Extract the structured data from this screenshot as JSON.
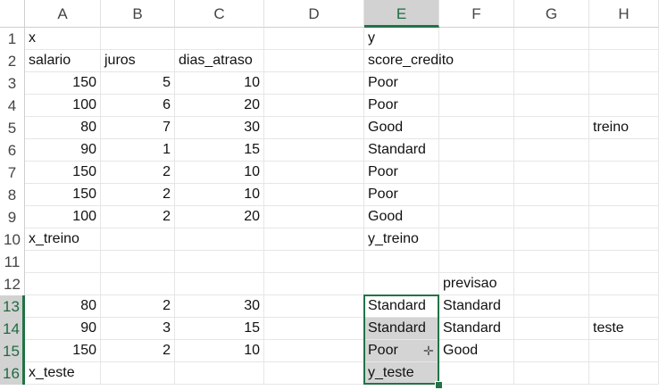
{
  "columns": [
    "A",
    "B",
    "C",
    "D",
    "E",
    "F",
    "G",
    "H"
  ],
  "selected_column": "E",
  "rows": [
    {
      "n": "1",
      "cells": {
        "A": "x",
        "E": "y"
      }
    },
    {
      "n": "2",
      "cells": {
        "A": "salario",
        "B": "juros",
        "C": "dias_atraso",
        "E": "score_credito"
      }
    },
    {
      "n": "3",
      "cells": {
        "A": "150",
        "B": "5",
        "C": "10",
        "E": "Poor"
      }
    },
    {
      "n": "4",
      "cells": {
        "A": "100",
        "B": "6",
        "C": "20",
        "E": "Poor"
      }
    },
    {
      "n": "5",
      "cells": {
        "A": "80",
        "B": "7",
        "C": "30",
        "E": "Good",
        "H": "treino"
      }
    },
    {
      "n": "6",
      "cells": {
        "A": "90",
        "B": "1",
        "C": "15",
        "E": "Standard"
      }
    },
    {
      "n": "7",
      "cells": {
        "A": "150",
        "B": "2",
        "C": "10",
        "E": "Poor"
      }
    },
    {
      "n": "8",
      "cells": {
        "A": "150",
        "B": "2",
        "C": "10",
        "E": "Poor"
      }
    },
    {
      "n": "9",
      "cells": {
        "A": "100",
        "B": "2",
        "C": "20",
        "E": "Good"
      }
    },
    {
      "n": "10",
      "cells": {
        "A": "x_treino",
        "E": "y_treino"
      }
    },
    {
      "n": "11",
      "cells": {}
    },
    {
      "n": "12",
      "cells": {
        "F": "previsao"
      }
    },
    {
      "n": "13",
      "cells": {
        "A": "80",
        "B": "2",
        "C": "30",
        "E": "Standard",
        "F": "Standard"
      }
    },
    {
      "n": "14",
      "cells": {
        "A": "90",
        "B": "3",
        "C": "15",
        "E": "Standard",
        "F": "Standard",
        "H": "teste"
      }
    },
    {
      "n": "15",
      "cells": {
        "A": "150",
        "B": "2",
        "C": "10",
        "E": "Poor",
        "F": "Good"
      }
    },
    {
      "n": "16",
      "cells": {
        "A": "x_teste",
        "E": "y_teste"
      }
    }
  ],
  "selection": {
    "column": "E",
    "from_row": "13",
    "to_row": "16",
    "active_row": "13"
  },
  "accent_color": "#217346",
  "cursor_icon": "crosshair-plus-icon"
}
